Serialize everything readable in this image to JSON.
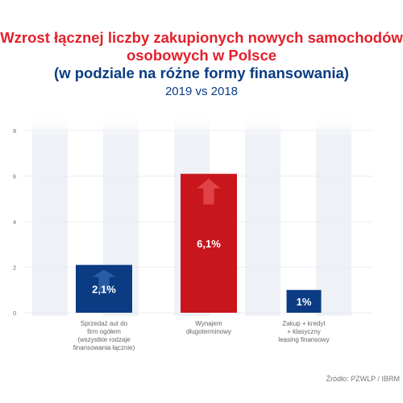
{
  "header": {
    "title_line1": "Wzrost łącznej liczby zakupionych nowych samochodów",
    "title_line2": "osobowych w Polsce",
    "title_line3": "(w podziale na różne formy finansowania)",
    "subtitle": "2019 vs 2018"
  },
  "source": "Źródło: PZWLP / IBRM",
  "chart_data": {
    "type": "bar",
    "title": "Wzrost łącznej liczby zakupionych nowych samochodów osobowych w Polsce (w podziale na różne formy finansowania)",
    "subtitle": "2019 vs 2018",
    "categories": [
      [
        "Sprzedaż aut do",
        "firm ogółem",
        "(wszystkie rodzaje",
        "finansowania łącznie)"
      ],
      [
        "Wynajem",
        "długoterminowy"
      ],
      [
        "Zakup + kredyt",
        "+ klasyczny",
        "leasing finansowy"
      ]
    ],
    "values": [
      2.1,
      6.1,
      1
    ],
    "data_labels": [
      "2,1%",
      "6,1%",
      "1%"
    ],
    "bar_colors": [
      "#0b3c83",
      "#c8161d",
      "#0b3c83"
    ],
    "ylim": [
      0,
      8
    ],
    "yticks": [
      0,
      2,
      4,
      6,
      8
    ],
    "grid": true,
    "stripe_color": "#eef1f6"
  }
}
